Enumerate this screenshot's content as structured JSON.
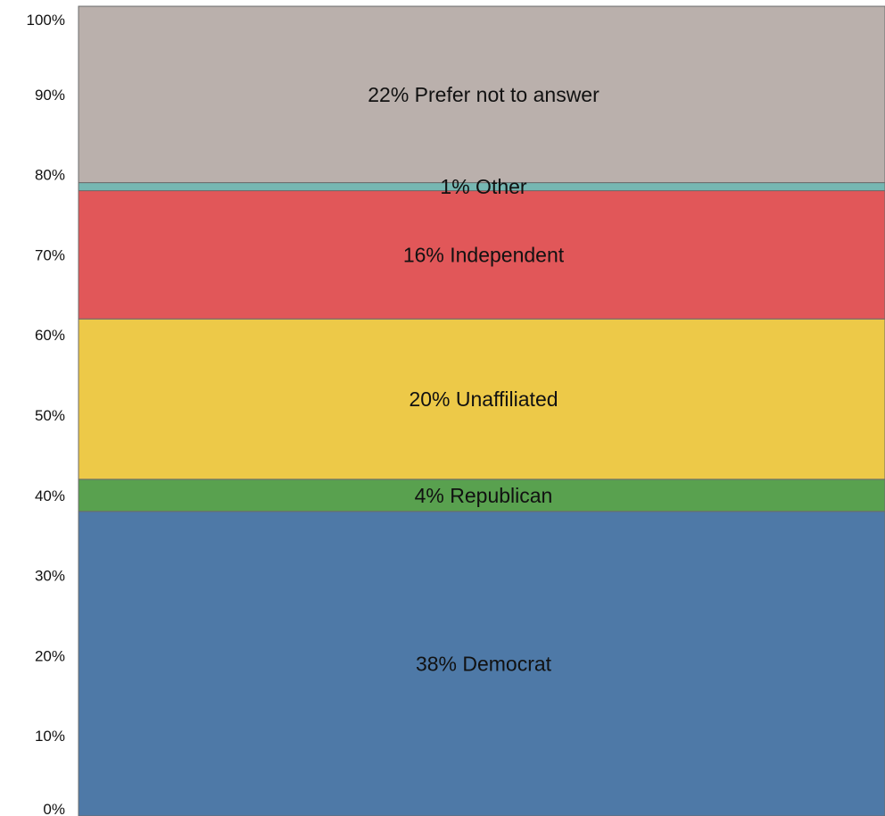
{
  "chart_data": {
    "type": "bar",
    "stacked": true,
    "ylim": [
      0,
      100
    ],
    "yticks": [
      "0%",
      "10%",
      "20%",
      "30%",
      "40%",
      "50%",
      "60%",
      "70%",
      "80%",
      "90%",
      "100%"
    ],
    "segments": [
      {
        "value": 38,
        "label": "38% Democrat",
        "color": "#4e79a7"
      },
      {
        "value": 4,
        "label": "4% Republican",
        "color": "#59a14f"
      },
      {
        "value": 20,
        "label": "20% Unaffiliated",
        "color": "#edc948"
      },
      {
        "value": 16,
        "label": "16% Independent",
        "color": "#e15759"
      },
      {
        "value": 1,
        "label": "1% Other",
        "color": "#76b7b2"
      },
      {
        "value": 22,
        "label": "22% Prefer not to answer",
        "color": "#bab0ac"
      }
    ]
  }
}
